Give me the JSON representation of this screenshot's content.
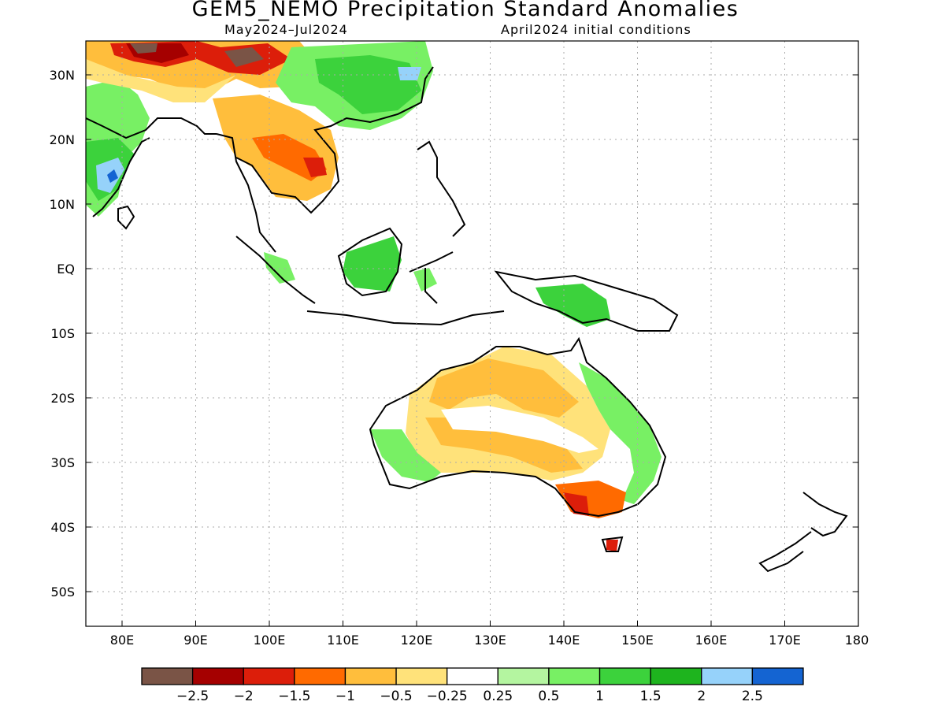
{
  "title": "GEM5_NEMO Precipitation Standard Anomalies",
  "subtitle_period": "May2024–Jul2024",
  "subtitle_init": "April2024 initial conditions",
  "lat_labels": [
    "30N",
    "20N",
    "10N",
    "EQ",
    "10S",
    "20S",
    "30S",
    "40S",
    "50S"
  ],
  "lon_labels": [
    "80E",
    "90E",
    "100E",
    "110E",
    "120E",
    "130E",
    "140E",
    "150E",
    "160E",
    "170E",
    "180"
  ],
  "colorbar": {
    "colors": [
      "#7a5446",
      "#a50000",
      "#dc1e0a",
      "#ff6a00",
      "#ffbe3c",
      "#ffe27a",
      "#ffffff",
      "#b4f5a0",
      "#78f064",
      "#3cd23c",
      "#1eb41e",
      "#96d2fa",
      "#1464d2"
    ],
    "labels": [
      "−2.5",
      "−2",
      "−1.5",
      "−1",
      "−0.5",
      "−0.25",
      "0.25",
      "0.5",
      "1",
      "1.5",
      "2",
      "2.5"
    ]
  }
}
